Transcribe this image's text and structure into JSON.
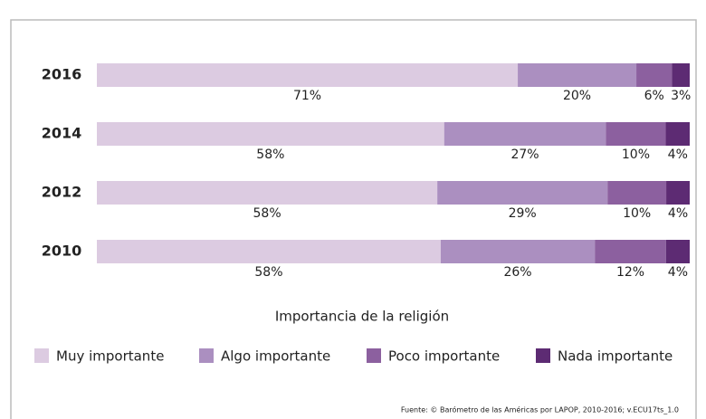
{
  "chart_data": {
    "type": "stacked-barh",
    "x_label": "Importancia de la religión",
    "source": "Fuente: © Barómetro de las Américas por LAPOP, 2010-2016; v.ECU17ts_1.0",
    "categories": [
      "2016",
      "2014",
      "2012",
      "2010"
    ],
    "series": [
      {
        "name": "Muy importante",
        "color": "#dccbe1",
        "values": [
          71,
          58,
          58,
          58
        ],
        "value_labels": [
          "71%",
          "58%",
          "58%",
          "58%"
        ]
      },
      {
        "name": "Algo importante",
        "color": "#ab8fc0",
        "values": [
          20,
          27,
          29,
          26
        ],
        "value_labels": [
          "20%",
          "27%",
          "29%",
          "26%"
        ]
      },
      {
        "name": "Poco importante",
        "color": "#8c609f",
        "values": [
          6,
          10,
          10,
          12
        ],
        "value_labels": [
          "6%",
          "10%",
          "10%",
          "12%"
        ]
      },
      {
        "name": "Nada importante",
        "color": "#5d2b73",
        "values": [
          3,
          4,
          4,
          4
        ],
        "value_labels": [
          "3%",
          "4%",
          "4%",
          "4%"
        ]
      }
    ],
    "legend": "bottom"
  }
}
